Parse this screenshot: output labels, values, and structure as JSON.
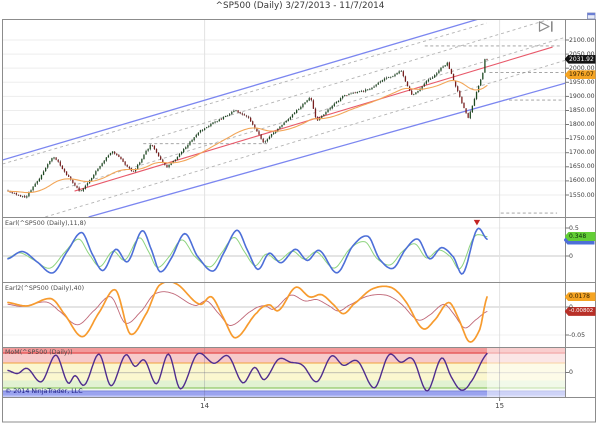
{
  "window": {
    "title": "^SP500 (Daily)  3/27/2013 - 11/7/2014"
  },
  "footer": {
    "copyright": "© 2014 NinjaTrader, LLC"
  },
  "x_axis": {
    "ticks": [
      {
        "label": "14",
        "pos": 0.359
      },
      {
        "label": "15",
        "pos": 0.883
      }
    ]
  },
  "chart_data": [
    {
      "id": "price",
      "type": "candlestick",
      "title": "^SP500 (Daily)",
      "date_range": "3/27/2013 - 11/7/2014",
      "ylim": [
        1470,
        2173
      ],
      "y_ticks": [
        2100,
        2050,
        2000,
        1950,
        1900,
        1850,
        1800,
        1750,
        1700,
        1650,
        1600,
        1550
      ],
      "tick_decimals": 2,
      "last_close": 2031.92,
      "last_close_label": "2031.92",
      "ma_value": 1976.07,
      "ma_label": "1976.07",
      "bars": 230,
      "price_pivots": [
        [
          0,
          1562
        ],
        [
          0.037,
          1540
        ],
        [
          0.095,
          1687
        ],
        [
          0.151,
          1560
        ],
        [
          0.217,
          1710
        ],
        [
          0.261,
          1627
        ],
        [
          0.298,
          1729
        ],
        [
          0.332,
          1646
        ],
        [
          0.4,
          1775
        ],
        [
          0.473,
          1849
        ],
        [
          0.5,
          1827
        ],
        [
          0.534,
          1737
        ],
        [
          0.632,
          1897
        ],
        [
          0.644,
          1814
        ],
        [
          0.7,
          1902
        ],
        [
          0.75,
          1925
        ],
        [
          0.82,
          1991
        ],
        [
          0.844,
          1904
        ],
        [
          0.917,
          2019
        ],
        [
          0.961,
          1820
        ],
        [
          1,
          2031.92
        ]
      ],
      "overlays": {
        "channel_upper": [
          [
            0,
            1674
          ],
          [
            0.845,
            2174
          ]
        ],
        "channel_lower": [
          [
            0.153,
            1472
          ],
          [
            1,
            1947
          ]
        ],
        "trend_red": [
          [
            0.128,
            1564
          ],
          [
            0.977,
            2075
          ]
        ],
        "dashed_gray": [
          [
            [
              0,
              1660
            ],
            [
              0.86,
              2160
            ]
          ],
          [
            [
              0.263,
              1748
            ],
            [
              1,
              2191
            ]
          ],
          [
            [
              0.103,
              1570
            ],
            [
              1,
              2110
            ]
          ],
          [
            [
              0.076,
              1472
            ],
            [
              1,
              2028
            ]
          ]
        ],
        "pivot_segments": [
          [
            0.75,
            0.99,
            2079
          ],
          [
            0.865,
            1,
            1985
          ],
          [
            0.89,
            0.995,
            1887
          ],
          [
            0.885,
            0.985,
            1486
          ],
          [
            0.25,
            0.47,
            1732
          ]
        ]
      },
      "colors": {
        "up": "#1d4a21",
        "down": "#7a1e1e",
        "wick": "#161616",
        "ma": "#f2a658",
        "channel": "#7b86f0",
        "trend": "#e8596a",
        "dashed": "#b3b3b3"
      }
    },
    {
      "id": "earl",
      "type": "line",
      "label": "Earl(^SP500 (Daily),11,8)",
      "y_ticks": [
        0.5,
        0
      ],
      "ylim": [
        -0.47,
        0.69
      ],
      "points": [
        [
          0,
          -0.05
        ],
        [
          0.03,
          0.08
        ],
        [
          0.06,
          -0.1
        ],
        [
          0.094,
          -0.3
        ],
        [
          0.125,
          0.1
        ],
        [
          0.154,
          0.42
        ],
        [
          0.175,
          0.05
        ],
        [
          0.198,
          -0.26
        ],
        [
          0.225,
          0.12
        ],
        [
          0.25,
          -0.1
        ],
        [
          0.28,
          0.45
        ],
        [
          0.3,
          0.1
        ],
        [
          0.317,
          -0.28
        ],
        [
          0.34,
          -0.05
        ],
        [
          0.369,
          0.4
        ],
        [
          0.395,
          0
        ],
        [
          0.428,
          -0.27
        ],
        [
          0.45,
          0.05
        ],
        [
          0.478,
          0.46
        ],
        [
          0.5,
          0.1
        ],
        [
          0.522,
          -0.24
        ],
        [
          0.545,
          0.05
        ],
        [
          0.57,
          -0.12
        ],
        [
          0.6,
          0.12
        ],
        [
          0.625,
          -0.08
        ],
        [
          0.65,
          0.1
        ],
        [
          0.687,
          -0.3
        ],
        [
          0.72,
          0.18
        ],
        [
          0.752,
          0.35
        ],
        [
          0.775,
          -0.05
        ],
        [
          0.804,
          -0.22
        ],
        [
          0.83,
          0.12
        ],
        [
          0.856,
          0.3
        ],
        [
          0.88,
          -0.05
        ],
        [
          0.905,
          0.15
        ],
        [
          0.93,
          -0.02
        ],
        [
          0.95,
          -0.31
        ],
        [
          0.979,
          0.47
        ],
        [
          1,
          0.3
        ]
      ],
      "signal_last": 0.348,
      "signal_label": "0.348",
      "marker": {
        "shape": "triangle-down",
        "pos": 0.979,
        "color": "#c42323"
      },
      "colors": {
        "line": "#4d6fd8",
        "signal": "#8fd47f"
      }
    },
    {
      "id": "earl2",
      "type": "line",
      "label": "Earl2(^SP500 (Daily),40)",
      "y_ticks": [
        0,
        -0.05
      ],
      "ylim": [
        -0.072,
        0.0437
      ],
      "points": [
        [
          0,
          0.008
        ],
        [
          0.04,
          0.002
        ],
        [
          0.09,
          0.015
        ],
        [
          0.115,
          -0.01
        ],
        [
          0.155,
          -0.053
        ],
        [
          0.19,
          -0.01
        ],
        [
          0.225,
          0.03
        ],
        [
          0.255,
          -0.048
        ],
        [
          0.29,
          -0.01
        ],
        [
          0.315,
          0.038
        ],
        [
          0.35,
          0.042
        ],
        [
          0.4,
          0.005
        ],
        [
          0.425,
          0.018
        ],
        [
          0.45,
          -0.02
        ],
        [
          0.475,
          -0.055
        ],
        [
          0.52,
          -0.01
        ],
        [
          0.545,
          0.004
        ],
        [
          0.565,
          -0.006
        ],
        [
          0.6,
          0.035
        ],
        [
          0.63,
          0.018
        ],
        [
          0.655,
          0.022
        ],
        [
          0.68,
          0.004
        ],
        [
          0.7,
          -0.012
        ],
        [
          0.72,
          0.004
        ],
        [
          0.76,
          0.032
        ],
        [
          0.8,
          0.035
        ],
        [
          0.83,
          0.01
        ],
        [
          0.865,
          -0.038
        ],
        [
          0.89,
          -0.024
        ],
        [
          0.92,
          0.008
        ],
        [
          0.94,
          -0.02
        ],
        [
          0.963,
          -0.062
        ],
        [
          0.985,
          -0.04
        ],
        [
          1,
          0.0178
        ]
      ],
      "last": 0.0178,
      "last_label": "0.0178",
      "signal_last": -0.00802,
      "signal_label": "-0.00802",
      "colors": {
        "line": "#f79b2e",
        "signal": "#c06878"
      }
    },
    {
      "id": "mom",
      "type": "line",
      "label": "MoM(^SP500 (Daily))",
      "y_ticks": [
        0
      ],
      "ylim": [
        -1.22,
        1.22
      ],
      "points": [
        [
          0,
          0.1
        ],
        [
          0.02,
          -0.05
        ],
        [
          0.04,
          0.2
        ],
        [
          0.07,
          -0.45
        ],
        [
          0.1,
          0.85
        ],
        [
          0.125,
          -0.5
        ],
        [
          0.14,
          -0.15
        ],
        [
          0.16,
          -0.6
        ],
        [
          0.19,
          0.9
        ],
        [
          0.215,
          -0.65
        ],
        [
          0.245,
          0.85
        ],
        [
          0.265,
          0.3
        ],
        [
          0.285,
          0.6
        ],
        [
          0.31,
          -0.55
        ],
        [
          0.335,
          0.9
        ],
        [
          0.36,
          -0.8
        ],
        [
          0.395,
          0.9
        ],
        [
          0.43,
          0.45
        ],
        [
          0.46,
          0.8
        ],
        [
          0.49,
          -0.5
        ],
        [
          0.515,
          0.25
        ],
        [
          0.535,
          -0.35
        ],
        [
          0.565,
          0.65
        ],
        [
          0.59,
          0.5
        ],
        [
          0.615,
          0.35
        ],
        [
          0.645,
          -0.45
        ],
        [
          0.675,
          0.8
        ],
        [
          0.7,
          0.35
        ],
        [
          0.73,
          0.55
        ],
        [
          0.765,
          -0.75
        ],
        [
          0.795,
          0.85
        ],
        [
          0.82,
          0.5
        ],
        [
          0.845,
          0.65
        ],
        [
          0.875,
          -0.9
        ],
        [
          0.905,
          0.7
        ],
        [
          0.925,
          -0.2
        ],
        [
          0.945,
          -0.85
        ],
        [
          0.965,
          -0.5
        ],
        [
          1,
          0.92
        ]
      ],
      "bands": [
        {
          "h0": 0,
          "h1": 0.1,
          "c": "#f29a9a"
        },
        {
          "h0": 0.1,
          "h1": 0.125,
          "c": "#e23d3d"
        },
        {
          "h0": 0.125,
          "h1": 0.3,
          "c": "#f7caca"
        },
        {
          "h0": 0.3,
          "h1": 0.32,
          "c": "#f2a13d"
        },
        {
          "h0": 0.32,
          "h1": 0.5,
          "c": "#fbf7cf"
        },
        {
          "h0": 0.5,
          "h1": 0.515,
          "c": "#9a9a9a"
        },
        {
          "h0": 0.515,
          "h1": 0.66,
          "c": "#fbf7cf"
        },
        {
          "h0": 0.66,
          "h1": 0.8,
          "c": "#e2f2d2"
        },
        {
          "h0": 0.8,
          "h1": 0.82,
          "c": "#7fbf4d"
        },
        {
          "h0": 0.82,
          "h1": 0.86,
          "c": "#f0f7ec"
        },
        {
          "h0": 0.86,
          "h1": 0.88,
          "c": "#7c85dd"
        },
        {
          "h0": 0.88,
          "h1": 0.96,
          "c": "#9aa3ef"
        },
        {
          "h0": 0.96,
          "h1": 1,
          "c": "#c3c9f6"
        }
      ],
      "colors": {
        "line": "#4f2d8e"
      }
    }
  ]
}
